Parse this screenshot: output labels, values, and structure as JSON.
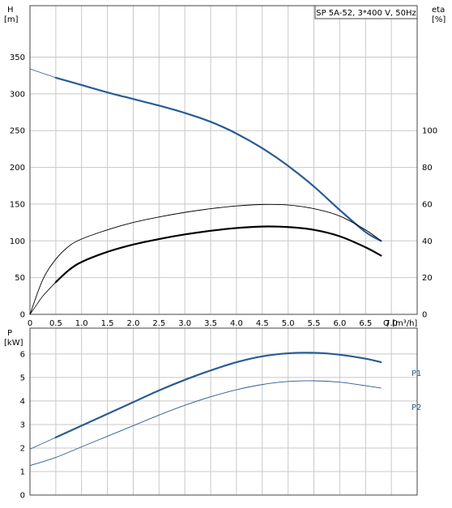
{
  "chart_data": [
    {
      "type": "line",
      "title": "SP 5A-52, 3*400 V, 50Hz",
      "ylabel_left": "H",
      "ylabel_left_unit": "[m]",
      "ylabel_right": "eta",
      "ylabel_right_unit": "[%]",
      "xlabel": "Q [m³/h]",
      "xlim": [
        0,
        7.5
      ],
      "ylim_left": [
        0,
        420
      ],
      "ylim_right": [
        0,
        168
      ],
      "x_ticks": [
        "0",
        "0.5",
        "1.0",
        "1.5",
        "2.0",
        "2.5",
        "3.0",
        "3.5",
        "4.0",
        "4.5",
        "5.0",
        "5.5",
        "6.0",
        "6.5",
        "7.0"
      ],
      "x_tick_values": [
        0,
        0.5,
        1.0,
        1.5,
        2.0,
        2.5,
        3.0,
        3.5,
        4.0,
        4.5,
        5.0,
        5.5,
        6.0,
        6.5,
        7.0
      ],
      "y_left_ticks": [
        "0",
        "50",
        "100",
        "150",
        "200",
        "250",
        "300",
        "350"
      ],
      "y_left_tick_values": [
        0,
        50,
        100,
        150,
        200,
        250,
        300,
        350
      ],
      "y_right_ticks": [
        "0",
        "20",
        "40",
        "60",
        "80",
        "100"
      ],
      "y_right_tick_values": [
        0,
        20,
        40,
        60,
        80,
        100
      ],
      "grid": true,
      "series": [
        {
          "axis": "left",
          "color": "#2a5b93",
          "width": 2.2,
          "x": [
            0.5,
            1.0,
            1.5,
            2.0,
            2.5,
            3.0,
            3.5,
            4.0,
            4.5,
            5.0,
            5.5,
            6.0,
            6.5,
            6.8
          ],
          "y": [
            322,
            312,
            302,
            293,
            284,
            274,
            262,
            246,
            226,
            202,
            174,
            142,
            112,
            100
          ]
        },
        {
          "axis": "left",
          "color": "#2a5b93",
          "width": 0.8,
          "x": [
            0,
            0.25,
            0.5
          ],
          "y": [
            334,
            328,
            322
          ]
        },
        {
          "axis": "right",
          "color": "#000000",
          "width": 0.9,
          "x": [
            0,
            0.25,
            0.5,
            0.75,
            1.0,
            1.5,
            2.0,
            2.5,
            3.0,
            3.5,
            4.0,
            4.5,
            5.0,
            5.5,
            6.0,
            6.5,
            6.8
          ],
          "y": [
            0,
            19,
            30,
            37,
            41,
            46,
            50,
            53,
            55.5,
            57.5,
            59,
            59.8,
            59.5,
            57.5,
            53.5,
            46,
            40
          ]
        },
        {
          "axis": "right",
          "color": "#000000",
          "width": 2.2,
          "x": [
            0.5,
            0.75,
            1.0,
            1.5,
            2.0,
            2.5,
            3.0,
            3.5,
            4.0,
            4.5,
            5.0,
            5.5,
            6.0,
            6.5,
            6.8
          ],
          "y": [
            17.5,
            24,
            28.5,
            34,
            38,
            41,
            43.5,
            45.5,
            47,
            47.8,
            47.5,
            46,
            42.5,
            36.5,
            32
          ]
        },
        {
          "axis": "right",
          "color": "#000000",
          "width": 0.8,
          "x": [
            0,
            0.1,
            0.25,
            0.5
          ],
          "y": [
            0,
            4,
            10,
            17.5
          ]
        }
      ]
    },
    {
      "type": "line",
      "ylabel": "P",
      "ylabel_unit": "[kW]",
      "xlim": [
        0,
        7.5
      ],
      "ylim": [
        0,
        7.1
      ],
      "x_tick_values": [
        0,
        0.5,
        1.0,
        1.5,
        2.0,
        2.5,
        3.0,
        3.5,
        4.0,
        4.5,
        5.0,
        5.5,
        6.0,
        6.5,
        7.0
      ],
      "y_ticks": [
        "0",
        "1",
        "2",
        "3",
        "4",
        "5",
        "6"
      ],
      "y_tick_values": [
        0,
        1,
        2,
        3,
        4,
        5,
        6
      ],
      "grid": true,
      "series": [
        {
          "name": "P1",
          "color": "#2a5b93",
          "width": 2.2,
          "x": [
            0.5,
            1.0,
            1.5,
            2.0,
            2.5,
            3.0,
            3.5,
            4.0,
            4.5,
            5.0,
            5.5,
            6.0,
            6.5,
            6.8
          ],
          "y": [
            2.45,
            2.95,
            3.45,
            3.95,
            4.45,
            4.9,
            5.3,
            5.65,
            5.9,
            6.03,
            6.05,
            5.97,
            5.8,
            5.65
          ]
        },
        {
          "color": "#2a5b93",
          "width": 0.8,
          "x": [
            0,
            0.25,
            0.5
          ],
          "y": [
            1.95,
            2.2,
            2.45
          ]
        },
        {
          "name": "P2",
          "color": "#2a5b93",
          "width": 0.9,
          "x": [
            0,
            0.5,
            1.0,
            1.5,
            2.0,
            2.5,
            3.0,
            3.5,
            4.0,
            4.5,
            5.0,
            5.5,
            6.0,
            6.5,
            6.8
          ],
          "y": [
            1.25,
            1.6,
            2.05,
            2.5,
            2.95,
            3.4,
            3.82,
            4.18,
            4.48,
            4.7,
            4.83,
            4.86,
            4.8,
            4.65,
            4.55
          ]
        }
      ]
    }
  ]
}
